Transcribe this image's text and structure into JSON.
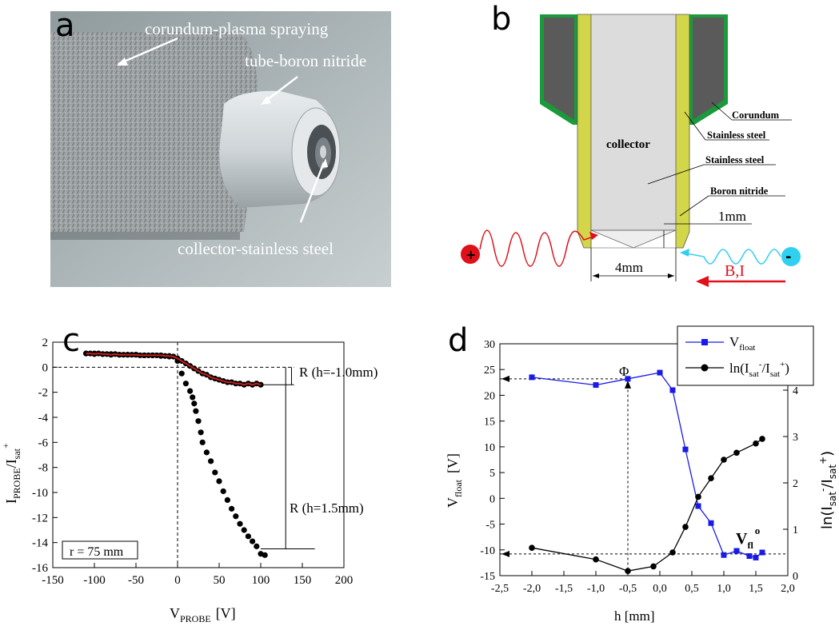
{
  "panel_a": {
    "letter": "a",
    "labels": {
      "corundum": "corundum-plasma spraying",
      "tube": "tube-boron nitride",
      "collector": "collector-stainless steel"
    }
  },
  "panel_b": {
    "letter": "b",
    "labels": {
      "corundum": "Corundum",
      "steel1": "Stainless steel",
      "steel2": "Stainless steel",
      "boron": "Boron nitride",
      "collector": "collector",
      "gap": "1mm",
      "width": "4mm",
      "field": "B,I",
      "plus": "+",
      "minus": "-"
    },
    "colors": {
      "yellow": "#d4d64a",
      "green": "#1a9a3a",
      "gray": "#5a5a5a",
      "red": "#e0101a",
      "cyan": "#30d0f0"
    }
  },
  "panel_c": {
    "letter": "c",
    "y_tick_labels": [
      "2",
      "0",
      "-2",
      "-4",
      "-6",
      "-8",
      "-10",
      "-12",
      "-14",
      "-16"
    ],
    "x_tick_labels": [
      "-150",
      "-100",
      "-50",
      "0",
      "50",
      "100",
      "150",
      "200"
    ],
    "annot1": "R (h=-1.0mm)",
    "annot2": "R (h=1.5mm)",
    "box": "r = 75 mm",
    "xlabel_main": "V",
    "xlabel_sub": "PROBE",
    "xlabel_unit": "[V]",
    "ylabel": "I",
    "ylabel_sub1": "PROBE",
    "ylabel_slash": "/I",
    "ylabel_sub2": "sat",
    "ylabel_sup": "+"
  },
  "panel_d": {
    "letter": "d",
    "y_left_ticks": [
      "30",
      "25",
      "20",
      "15",
      "10",
      "5",
      "0",
      "-5",
      "-10",
      "-15"
    ],
    "y_right_ticks": [
      "4",
      "3",
      "2",
      "1",
      "0"
    ],
    "x_ticks": [
      "-2,5",
      "-2,0",
      "-1,5",
      "-1,0",
      "-0,5",
      "0,0",
      "0,5",
      "1,0",
      "1,5",
      "2,0"
    ],
    "xlabel": "h  [mm]",
    "ylabel_left_main": "V",
    "ylabel_left_sub": "float",
    "ylabel_left_unit": "[V]",
    "ylabel_right": "ln(I",
    "ylabel_right_sub": "sat",
    "ylabel_right_sup1": "-",
    "ylabel_right_mid": "/I",
    "ylabel_right_sup2": "+",
    "ylabel_right_end": ")",
    "legend1_main": "V",
    "legend1_sub": "float",
    "legend2_main": "ln(I",
    "legend2_sub": "sat",
    "legend2_sup": "-",
    "legend2_mid": "/I",
    "legend2_sup2": "+",
    "legend2_end": ")",
    "phi": "Φ",
    "vfl_main": "V",
    "vfl_sub": "fl",
    "vfl_sup": "o"
  },
  "chart_data": [
    {
      "type": "scatter",
      "xlabel": "V_PROBE [V]",
      "ylabel": "I_PROBE/I_sat+",
      "xlim": [
        -150,
        200
      ],
      "ylim": [
        -16,
        2
      ],
      "series": [
        {
          "name": "",
          "x": [
            -110,
            -105,
            -100,
            -95,
            -90,
            -85,
            -80,
            -75,
            -70,
            -65,
            -60,
            -55,
            -50,
            -45,
            -40,
            -35,
            -30,
            -25,
            -20,
            -15,
            -10,
            -5,
            0,
            5,
            10,
            15,
            20,
            25,
            30,
            35,
            40,
            45,
            50,
            55,
            60,
            65,
            70,
            75,
            80,
            85,
            90,
            95,
            100
          ],
          "y": [
            1.1,
            1.1,
            1.05,
            1.1,
            1.05,
            1.05,
            1.0,
            1.05,
            1.0,
            1.0,
            1.0,
            1.0,
            1.0,
            0.95,
            0.95,
            0.95,
            0.95,
            0.95,
            0.95,
            0.9,
            0.9,
            0.85,
            0.7,
            0.5,
            0.3,
            0.1,
            -0.1,
            -0.3,
            -0.5,
            -0.6,
            -0.8,
            -0.9,
            -1.0,
            -1.1,
            -1.2,
            -1.2,
            -1.3,
            -1.3,
            -1.4,
            -1.3,
            -1.4,
            -1.3,
            -1.4
          ]
        },
        {
          "name": "",
          "x": [
            -110,
            -100,
            -90,
            -80,
            -70,
            -60,
            -50,
            -40,
            -30,
            -20,
            -10,
            0,
            5,
            10,
            15,
            18,
            20,
            22,
            25,
            28,
            30,
            35,
            40,
            45,
            50,
            55,
            60,
            65,
            70,
            75,
            80,
            85,
            90,
            95,
            100,
            105
          ],
          "y": [
            1.1,
            1.1,
            1.05,
            1.05,
            1.0,
            1.0,
            1.0,
            0.95,
            0.95,
            0.9,
            0.85,
            0.5,
            -0.5,
            -1.3,
            -1.9,
            -2.4,
            -2.9,
            -3.5,
            -4.3,
            -5.2,
            -6.0,
            -6.8,
            -7.5,
            -8.4,
            -9.1,
            -9.9,
            -10.6,
            -11.3,
            -11.9,
            -12.5,
            -13.0,
            -13.5,
            -13.9,
            -14.3,
            -14.9,
            -15.0
          ]
        }
      ]
    },
    {
      "type": "line",
      "xlabel": "h [mm]",
      "xlim": [
        -2.5,
        2.0
      ],
      "ylim_left": [
        -15,
        30
      ],
      "ylim_right": [
        0,
        5
      ],
      "series": [
        {
          "name": "V_float",
          "axis": "left",
          "color": "#1a1ae6",
          "x": [
            -2.0,
            -1.0,
            -0.5,
            0.0,
            0.2,
            0.4,
            0.6,
            0.8,
            1.0,
            1.2,
            1.4,
            1.5,
            1.6
          ],
          "y": [
            23.5,
            22.0,
            23.2,
            24.4,
            21.0,
            9.5,
            -1.5,
            -4.8,
            -11.0,
            -10.2,
            -11.2,
            -11.5,
            -10.5
          ]
        },
        {
          "name": "ln(I_sat-/I_sat+)",
          "axis": "right",
          "color": "#000000",
          "x": [
            -2.0,
            -1.0,
            -0.5,
            -0.1,
            0.2,
            0.4,
            0.6,
            0.8,
            1.0,
            1.2,
            1.5,
            1.6
          ],
          "y": [
            0.6,
            0.35,
            0.1,
            0.2,
            0.5,
            1.05,
            1.7,
            2.1,
            2.5,
            2.65,
            2.85,
            2.95
          ]
        }
      ]
    }
  ]
}
